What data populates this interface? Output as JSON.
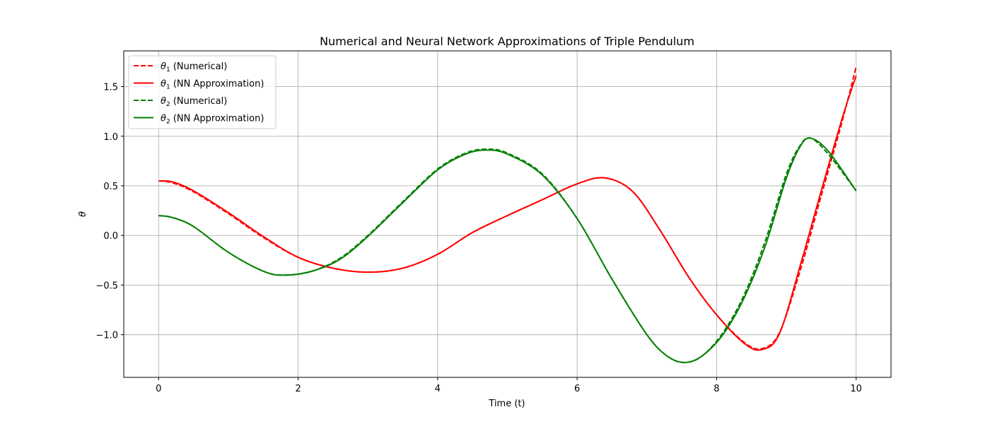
{
  "chart_data": {
    "type": "line",
    "title": "Numerical and Neural Network Approximations of Triple Pendulum",
    "xlabel": "Time (t)",
    "ylabel": "θ",
    "xlim": [
      -0.5,
      10.5
    ],
    "ylim": [
      -1.43,
      1.86
    ],
    "xticks": [
      0,
      2,
      4,
      6,
      8,
      10
    ],
    "xtick_labels": [
      "0",
      "2",
      "4",
      "6",
      "8",
      "10"
    ],
    "yticks": [
      -1.0,
      -0.5,
      0.0,
      0.5,
      1.0,
      1.5
    ],
    "ytick_labels": [
      "−1.0",
      "−0.5",
      "0.0",
      "0.5",
      "1.0",
      "1.5"
    ],
    "grid": true,
    "legend_position": "top-left",
    "series": [
      {
        "legend": {
          "symbol": "θ",
          "sub": "1",
          "text": " (Numerical)"
        },
        "color": "#ff0000",
        "style": "dashed",
        "x": [
          0,
          0.2,
          0.5,
          1.0,
          1.5,
          2.0,
          2.5,
          3.0,
          3.5,
          4.0,
          4.5,
          5.0,
          5.5,
          6.0,
          6.4,
          6.8,
          7.2,
          7.6,
          8.0,
          8.4,
          8.65,
          8.9,
          9.2,
          9.5,
          9.8,
          10.0
        ],
        "y": [
          0.55,
          0.53,
          0.44,
          0.22,
          -0.02,
          -0.22,
          -0.33,
          -0.37,
          -0.33,
          -0.19,
          0.03,
          0.2,
          0.36,
          0.52,
          0.58,
          0.44,
          0.04,
          -0.42,
          -0.8,
          -1.08,
          -1.14,
          -0.98,
          -0.35,
          0.4,
          1.15,
          1.7
        ]
      },
      {
        "legend": {
          "symbol": "θ",
          "sub": "1",
          "text": " (NN Approximation)"
        },
        "color": "#ff0000",
        "style": "solid",
        "x": [
          0,
          0.2,
          0.5,
          1.0,
          1.5,
          2.0,
          2.5,
          3.0,
          3.5,
          4.0,
          4.5,
          5.0,
          5.5,
          6.0,
          6.4,
          6.8,
          7.2,
          7.6,
          8.0,
          8.4,
          8.65,
          8.9,
          9.2,
          9.5,
          9.8,
          10.0
        ],
        "y": [
          0.55,
          0.54,
          0.45,
          0.23,
          -0.01,
          -0.22,
          -0.33,
          -0.37,
          -0.33,
          -0.19,
          0.03,
          0.2,
          0.36,
          0.52,
          0.58,
          0.44,
          0.04,
          -0.42,
          -0.8,
          -1.09,
          -1.15,
          -0.99,
          -0.3,
          0.45,
          1.18,
          1.61
        ]
      },
      {
        "legend": {
          "symbol": "θ",
          "sub": "2",
          "text": " (Numerical)"
        },
        "color": "#008000",
        "style": "dashed",
        "x": [
          0,
          0.2,
          0.5,
          1.0,
          1.5,
          1.8,
          2.2,
          2.6,
          3.0,
          3.5,
          4.0,
          4.4,
          4.7,
          5.0,
          5.5,
          6.0,
          6.5,
          7.0,
          7.3,
          7.55,
          7.8,
          8.1,
          8.4,
          8.7,
          9.0,
          9.2,
          9.35,
          9.6,
          10.0
        ],
        "y": [
          0.2,
          0.18,
          0.09,
          -0.17,
          -0.36,
          -0.4,
          -0.36,
          -0.23,
          0.0,
          0.34,
          0.67,
          0.83,
          0.87,
          0.83,
          0.62,
          0.17,
          -0.44,
          -1.0,
          -1.22,
          -1.28,
          -1.21,
          -0.97,
          -0.59,
          -0.05,
          0.62,
          0.91,
          0.98,
          0.82,
          0.45
        ]
      },
      {
        "legend": {
          "symbol": "θ",
          "sub": "2",
          "text": " (NN Approximation)"
        },
        "color": "#008000",
        "style": "solid",
        "x": [
          0,
          0.2,
          0.5,
          1.0,
          1.5,
          1.8,
          2.2,
          2.6,
          3.0,
          3.5,
          4.0,
          4.4,
          4.7,
          5.0,
          5.5,
          6.0,
          6.5,
          7.0,
          7.3,
          7.55,
          7.8,
          8.1,
          8.4,
          8.7,
          9.0,
          9.2,
          9.35,
          9.6,
          10.0
        ],
        "y": [
          0.2,
          0.18,
          0.09,
          -0.17,
          -0.36,
          -0.4,
          -0.36,
          -0.24,
          -0.01,
          0.33,
          0.66,
          0.82,
          0.86,
          0.82,
          0.61,
          0.17,
          -0.44,
          -1.0,
          -1.22,
          -1.28,
          -1.21,
          -0.99,
          -0.62,
          -0.1,
          0.58,
          0.9,
          0.98,
          0.85,
          0.45
        ]
      }
    ]
  }
}
